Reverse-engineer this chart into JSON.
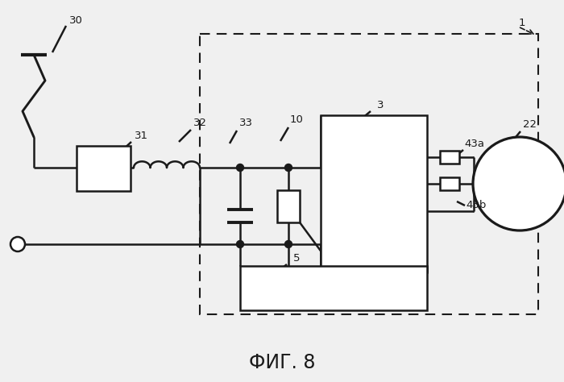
{
  "bg_color": "#f0f0f0",
  "line_color": "#1a1a1a",
  "line_width": 1.8,
  "title": "ФИГ. 8",
  "title_fontsize": 17,
  "figsize": [
    7.0,
    4.74
  ],
  "dpi": 100
}
